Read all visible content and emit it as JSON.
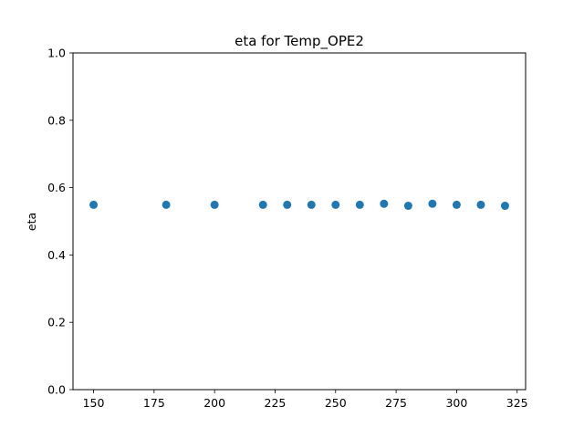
{
  "chart_data": {
    "type": "scatter",
    "title": "eta for Temp_OPE2",
    "xlabel": "",
    "ylabel": "eta",
    "xlim": [
      141.5,
      328.5
    ],
    "ylim": [
      0.0,
      1.0
    ],
    "xticks": [
      150,
      175,
      200,
      225,
      250,
      275,
      300,
      325
    ],
    "yticks": [
      0.0,
      0.2,
      0.4,
      0.6,
      0.8,
      1.0
    ],
    "xtick_labels": [
      "150",
      "175",
      "200",
      "225",
      "250",
      "275",
      "300",
      "325"
    ],
    "ytick_labels": [
      "0.0",
      "0.2",
      "0.4",
      "0.6",
      "0.8",
      "1.0"
    ],
    "grid": false,
    "series": [
      {
        "color": "#1f77b4",
        "x": [
          150,
          180,
          200,
          220,
          230,
          240,
          250,
          260,
          270,
          280,
          290,
          300,
          310,
          320
        ],
        "y": [
          0.549,
          0.549,
          0.549,
          0.549,
          0.549,
          0.549,
          0.549,
          0.549,
          0.552,
          0.546,
          0.552,
          0.549,
          0.549,
          0.546
        ]
      }
    ]
  }
}
